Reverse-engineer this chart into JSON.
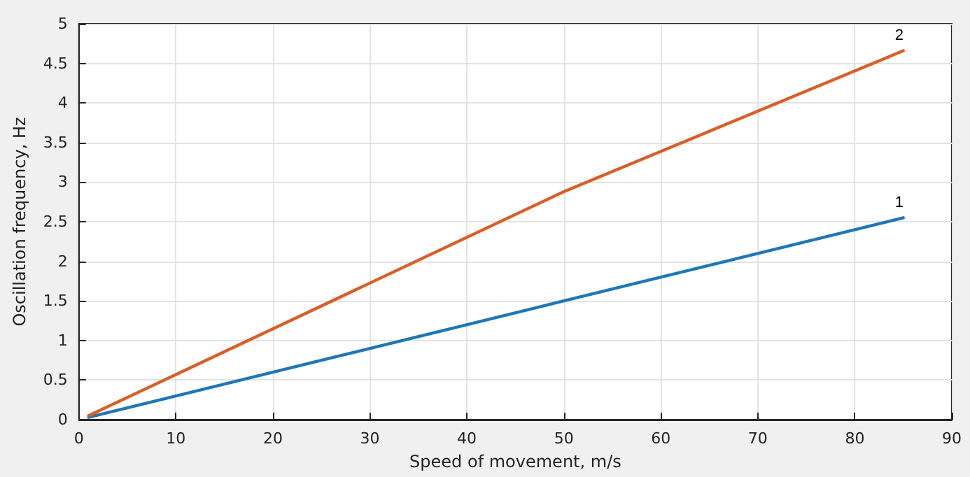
{
  "chart_data": {
    "type": "line",
    "xlabel": "Speed of movement, m/s",
    "ylabel": "Oscillation frequency, Hz",
    "xlim": [
      0,
      90
    ],
    "xticks": [
      0,
      10,
      20,
      30,
      40,
      50,
      60,
      70,
      80,
      90
    ],
    "ylim": [
      0,
      5
    ],
    "yticks": [
      0,
      0.5,
      1,
      1.5,
      2,
      2.5,
      3,
      3.5,
      4,
      4.5,
      5
    ],
    "grid": true,
    "legend": false,
    "marker": "none",
    "line_style": "solid",
    "series": [
      {
        "name": "1",
        "color": "#1f77b4",
        "x": [
          1,
          50,
          85
        ],
        "values": [
          0.03,
          1.5,
          2.55
        ]
      },
      {
        "name": "2",
        "color": "#d95f27",
        "x": [
          1,
          50,
          85
        ],
        "values": [
          0.05,
          2.88,
          4.66
        ]
      }
    ]
  }
}
